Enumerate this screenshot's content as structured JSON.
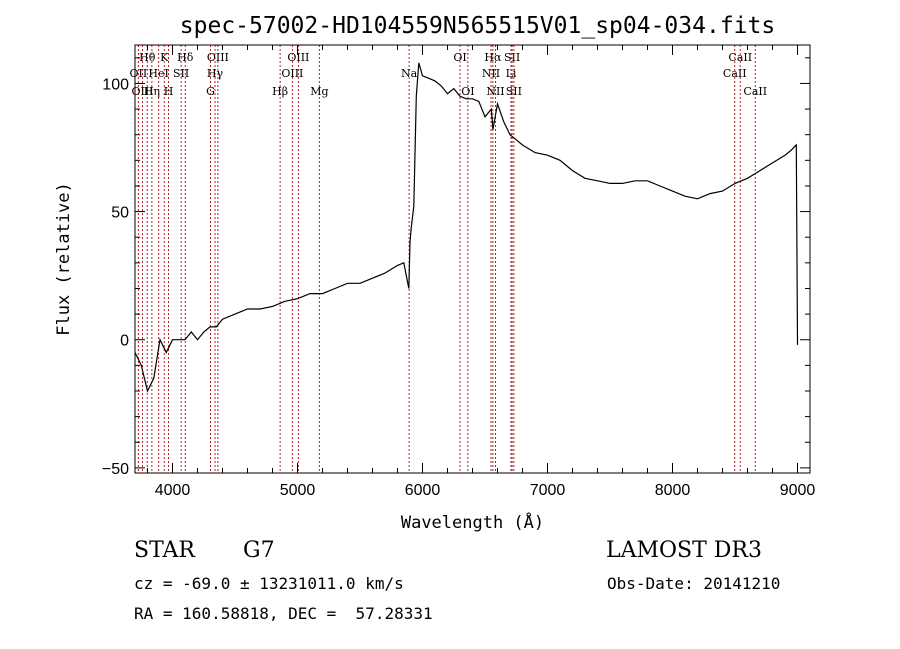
{
  "chart_data": {
    "type": "line",
    "title": "spec-57002-HD104559N565515V01_sp04-034.fits",
    "xlabel": "Wavelength (Å)",
    "ylabel": "Flux (relative)",
    "xlim": [
      3700,
      9100
    ],
    "ylim": [
      -52,
      115
    ],
    "x_ticks": [
      4000,
      5000,
      6000,
      7000,
      8000,
      9000
    ],
    "y_ticks": [
      -50,
      0,
      50,
      100
    ],
    "grid": false,
    "series": [
      {
        "x": [
          3700,
          3750,
          3800,
          3850,
          3900,
          3950,
          4000,
          4050,
          4100,
          4150,
          4200,
          4250,
          4300,
          4350,
          4400,
          4500,
          4600,
          4700,
          4800,
          4900,
          5000,
          5100,
          5200,
          5300,
          5400,
          5500,
          5600,
          5700,
          5800,
          5850,
          5890,
          5900,
          5910,
          5930,
          5950,
          5970,
          6000,
          6050,
          6100,
          6150,
          6200,
          6250,
          6300,
          6350,
          6400,
          6450,
          6500,
          6550,
          6563,
          6600,
          6650,
          6700,
          6750,
          6800,
          6900,
          7000,
          7100,
          7200,
          7300,
          7400,
          7500,
          7600,
          7700,
          7800,
          7900,
          8000,
          8100,
          8200,
          8300,
          8400,
          8500,
          8600,
          8700,
          8800,
          8900,
          8950,
          8990,
          9000
        ],
        "y": [
          -5,
          -10,
          -20,
          -15,
          0,
          -5,
          0,
          0,
          0,
          3,
          0,
          3,
          5,
          5,
          8,
          10,
          12,
          12,
          13,
          15,
          16,
          18,
          18,
          20,
          22,
          22,
          24,
          26,
          29,
          30,
          20,
          38,
          44,
          52,
          95,
          108,
          103,
          102,
          101,
          99,
          96,
          98,
          95,
          94,
          94,
          93,
          87,
          90,
          82,
          92,
          85,
          80,
          78,
          76,
          73,
          72,
          70,
          66,
          63,
          62,
          61,
          61,
          62,
          62,
          60,
          58,
          56,
          55,
          57,
          58,
          61,
          63,
          66,
          69,
          72,
          74,
          76,
          -2
        ]
      }
    ],
    "spectral_lines": [
      {
        "label": "Hθ",
        "x": 3798,
        "row": 1
      },
      {
        "label": "OII",
        "x": 3727,
        "row": 2
      },
      {
        "label": "OIII",
        "x": 3760,
        "row": 3
      },
      {
        "label": "K",
        "x": 3934,
        "row": 1
      },
      {
        "label": "HeI",
        "x": 3889,
        "row": 2
      },
      {
        "label": "Hη",
        "x": 3835,
        "row": 3
      },
      {
        "label": "Hδ",
        "x": 4102,
        "row": 1
      },
      {
        "label": "SII",
        "x": 4069,
        "row": 2
      },
      {
        "label": "H",
        "x": 3968,
        "row": 3
      },
      {
        "label": "OIII",
        "x": 4363,
        "row": 1
      },
      {
        "label": "Hγ",
        "x": 4340,
        "row": 2
      },
      {
        "label": "G",
        "x": 4304,
        "row": 3
      },
      {
        "label": "OIII",
        "x": 5007,
        "row": 1
      },
      {
        "label": "OIII",
        "x": 4959,
        "row": 2
      },
      {
        "label": "Hβ",
        "x": 4861,
        "row": 3
      },
      {
        "label": "Mg",
        "x": 5175,
        "row": 3
      },
      {
        "label": "Na",
        "x": 5893,
        "row": 2
      },
      {
        "label": "OI",
        "x": 6300,
        "row": 1
      },
      {
        "label": "OI",
        "x": 6363,
        "row": 3
      },
      {
        "label": "Hα",
        "x": 6563,
        "row": 1
      },
      {
        "label": "SII",
        "x": 6717,
        "row": 1
      },
      {
        "label": "NII",
        "x": 6548,
        "row": 2
      },
      {
        "label": "Li",
        "x": 6708,
        "row": 2
      },
      {
        "label": "NII",
        "x": 6584,
        "row": 3
      },
      {
        "label": "SII",
        "x": 6731,
        "row": 3
      },
      {
        "label": "CaII",
        "x": 8542,
        "row": 1
      },
      {
        "label": "CaII",
        "x": 8498,
        "row": 2
      },
      {
        "label": "CaII",
        "x": 8662,
        "row": 3
      }
    ]
  },
  "info": {
    "object_class": "STAR",
    "subclass": "G7",
    "survey": "LAMOST DR3",
    "cz": "cz = -69.0 ± 13231011.0 km/s",
    "obs_date": "Obs-Date: 20141210",
    "radec": "RA = 160.58818, DEC =  57.28331"
  },
  "colors": {
    "line_marker": "#b22222",
    "spectrum": "#000000"
  }
}
